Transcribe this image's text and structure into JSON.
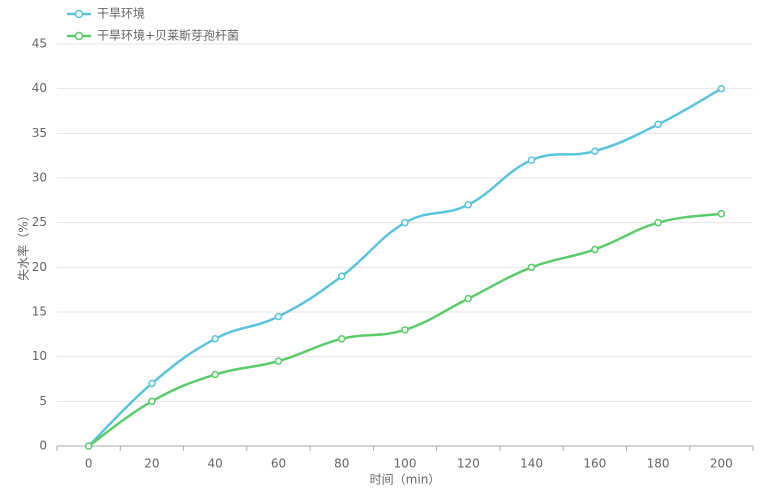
{
  "chart_data": {
    "type": "line",
    "x_label": "时间（min）",
    "y_label": "失水率（%）",
    "categories": [
      "0",
      "20",
      "40",
      "60",
      "80",
      "100",
      "120",
      "140",
      "160",
      "180",
      "200"
    ],
    "series": [
      {
        "name": "干旱环境",
        "color": "#5bc4dc",
        "values": [
          0,
          7,
          12,
          14.5,
          19,
          25,
          27,
          32,
          33,
          36,
          40
        ]
      },
      {
        "name": "干旱环境+贝莱斯芽孢杆菌",
        "color": "#5ccb6c",
        "values": [
          0,
          5,
          8,
          9.5,
          12,
          13,
          16.5,
          20,
          22,
          25,
          26
        ]
      }
    ],
    "ylim": [
      0,
      45
    ],
    "yticks": [
      0,
      5,
      10,
      15,
      20,
      25,
      30,
      35,
      40,
      45
    ],
    "grid": true,
    "legend": "top-left"
  }
}
